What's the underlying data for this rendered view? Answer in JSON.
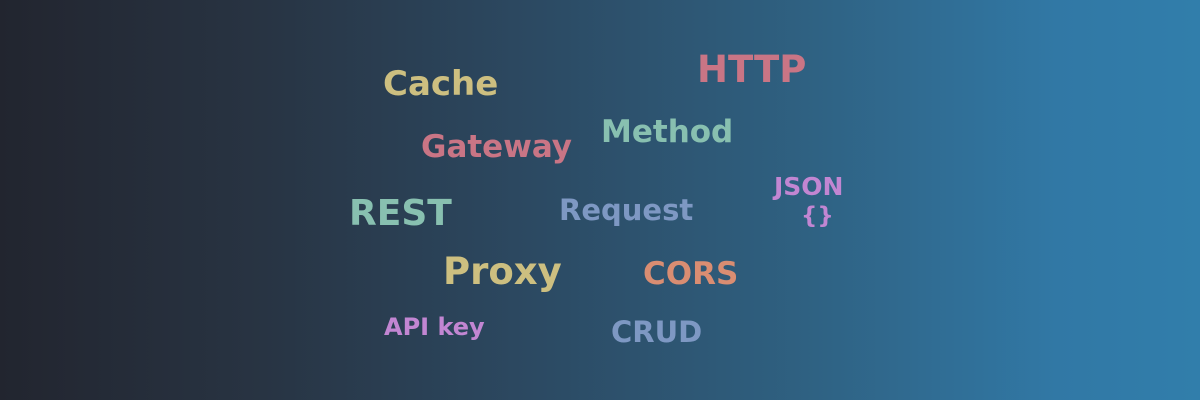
{
  "words": {
    "http": {
      "text": "HTTP",
      "color": "#c97585"
    },
    "cache": {
      "text": "Cache",
      "color": "#cdbf80"
    },
    "method": {
      "text": "Method",
      "color": "#88c0b0"
    },
    "gateway": {
      "text": "Gateway",
      "color": "#c97585"
    },
    "json": {
      "text": "JSON",
      "color": "#c286d2"
    },
    "braces": {
      "text": "{}",
      "color": "#c286d2"
    },
    "rest": {
      "text": "REST",
      "color": "#88c0b0"
    },
    "request": {
      "text": "Request",
      "color": "#7e98c3"
    },
    "proxy": {
      "text": "Proxy",
      "color": "#cdbf80"
    },
    "cors": {
      "text": "CORS",
      "color": "#d98d72"
    },
    "api_key": {
      "text": "API key",
      "color": "#c286d2"
    },
    "crud": {
      "text": "CRUD",
      "color": "#7e98c3"
    }
  }
}
